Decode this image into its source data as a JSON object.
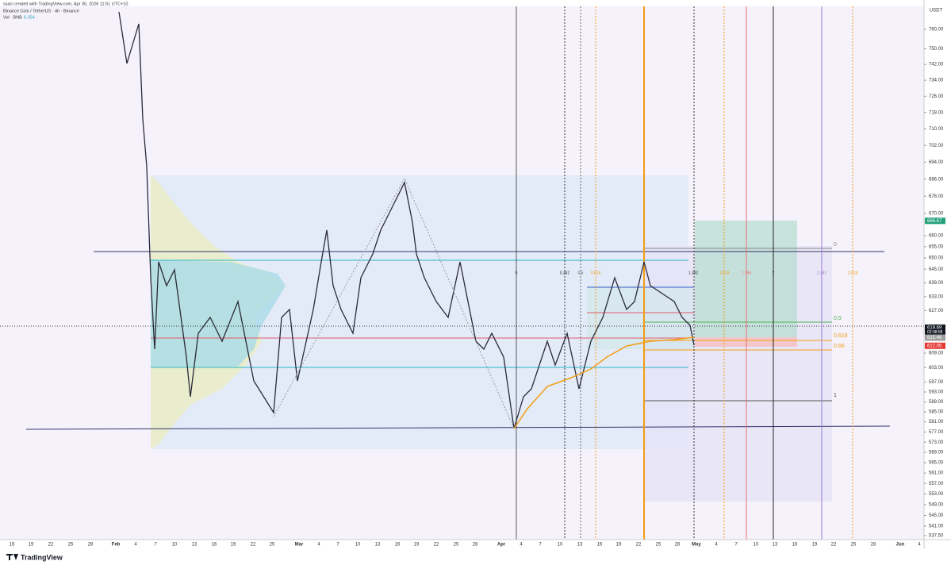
{
  "header": {
    "created": "ssari created with TradingView.com, Apr 30, 2026 11:51 UTC+10",
    "symbol": "Binance Coin / TetherUS · 4h · Binance",
    "volume_label": "Vol · BNB",
    "volume_value": "6.254"
  },
  "price_axis": {
    "currency": "USDT",
    "ticks": [
      {
        "value": 760,
        "label": "760.00"
      },
      {
        "value": 750,
        "label": "750.00"
      },
      {
        "value": 742,
        "label": "742.00"
      },
      {
        "value": 734,
        "label": "734.00"
      },
      {
        "value": 726,
        "label": "726.00"
      },
      {
        "value": 718,
        "label": "718.00"
      },
      {
        "value": 710,
        "label": "710.00"
      },
      {
        "value": 702,
        "label": "702.00"
      },
      {
        "value": 694,
        "label": "694.00"
      },
      {
        "value": 686,
        "label": "686.00"
      },
      {
        "value": 678,
        "label": "678.00"
      },
      {
        "value": 670,
        "label": "670.00"
      },
      {
        "value": 660,
        "label": "660.00"
      },
      {
        "value": 655,
        "label": "655.00"
      },
      {
        "value": 650,
        "label": "650.00"
      },
      {
        "value": 645,
        "label": "645.00"
      },
      {
        "value": 639,
        "label": "639.00"
      },
      {
        "value": 633,
        "label": "633.00"
      },
      {
        "value": 627,
        "label": "627.00"
      },
      {
        "value": 609,
        "label": "609.00"
      },
      {
        "value": 603,
        "label": "603.00"
      },
      {
        "value": 597,
        "label": "597.00"
      },
      {
        "value": 593,
        "label": "593.00"
      },
      {
        "value": 589,
        "label": "589.00"
      },
      {
        "value": 585,
        "label": "585.00"
      },
      {
        "value": 581,
        "label": "581.00"
      },
      {
        "value": 577,
        "label": "577.00"
      },
      {
        "value": 573,
        "label": "573.00"
      },
      {
        "value": 569,
        "label": "569.00"
      },
      {
        "value": 565,
        "label": "565.00"
      },
      {
        "value": 561,
        "label": "561.00"
      },
      {
        "value": 557,
        "label": "557.00"
      },
      {
        "value": 553,
        "label": "553.00"
      },
      {
        "value": 549,
        "label": "549.00"
      },
      {
        "value": 545,
        "label": "545.00"
      },
      {
        "value": 541,
        "label": "541.00"
      },
      {
        "value": 537.5,
        "label": "537.50"
      }
    ],
    "tags": [
      {
        "value": 666.67,
        "label": "666.67"
      },
      {
        "value": 619.69,
        "label": "619.69",
        "countdown": "02:08:58"
      },
      {
        "value": 615.46,
        "label": "615.46"
      },
      {
        "value": 612.05,
        "label": "612.05"
      }
    ]
  },
  "date_axis": [
    "16",
    "19",
    "22",
    "25",
    "28",
    "Feb",
    "4",
    "7",
    "10",
    "13",
    "16",
    "19",
    "22",
    "25",
    "Mar",
    "4",
    "7",
    "10",
    "13",
    "16",
    "19",
    "22",
    "25",
    "28",
    "Apr",
    "4",
    "7",
    "10",
    "13",
    "16",
    "19",
    "22",
    "25",
    "28",
    "May",
    "4",
    "7",
    "10",
    "13",
    "16",
    "19",
    "22",
    "25",
    "28",
    "Jun",
    "4"
  ],
  "fib_price_levels": [
    "0",
    "0.5",
    "0.618",
    "0.66",
    "1"
  ],
  "fib_time_levels": [
    "0",
    "0.382",
    "0.5",
    "0.618",
    "1.382",
    "1.618",
    "1.786",
    "2",
    "2.382",
    "2.618"
  ],
  "footer": {
    "brand": "TradingView"
  }
}
